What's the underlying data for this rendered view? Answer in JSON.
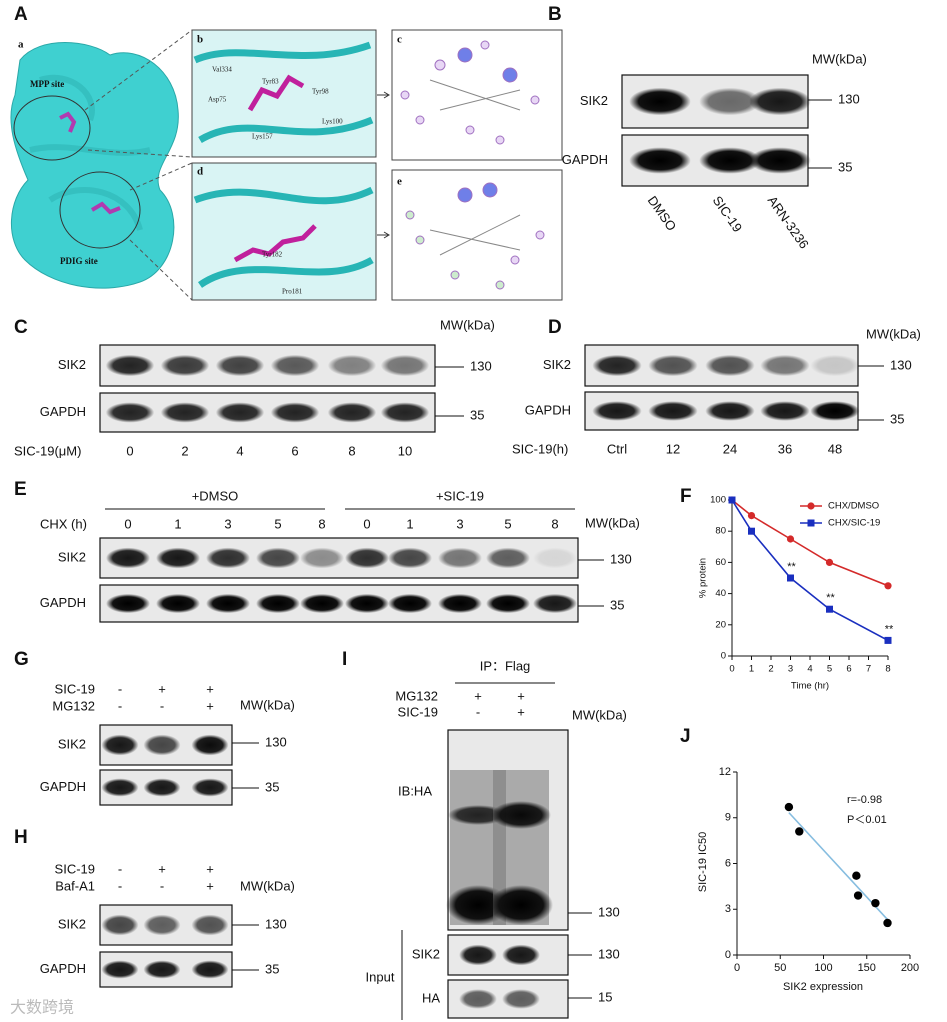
{
  "watermark": "大数跨境",
  "panels": {
    "A": {
      "label": "A",
      "subpanels": [
        "a",
        "b",
        "c",
        "d",
        "e"
      ],
      "sites": [
        "MPP site",
        "PDIG site"
      ],
      "residues_b": [
        "Val334",
        "Tyr83",
        "Asp75",
        "Tyr98",
        "Lys100",
        "Lys157"
      ],
      "residues_d": [
        "Tyr182",
        "Pro181"
      ]
    },
    "B": {
      "label": "B",
      "mw": "MW(kDa)",
      "rows": [
        {
          "name": "SIK2",
          "size": "130"
        },
        {
          "name": "GAPDH",
          "size": "35"
        }
      ],
      "lanes": [
        "DMSO",
        "SIC-19",
        "ARN-3236"
      ]
    },
    "C": {
      "label": "C",
      "mw": "MW(kDa)",
      "rows": [
        {
          "name": "SIK2",
          "size": "130"
        },
        {
          "name": "GAPDH",
          "size": "35"
        }
      ],
      "lane_title": "SIC-19(μM)",
      "lanes": [
        "0",
        "2",
        "4",
        "6",
        "8",
        "10"
      ]
    },
    "D": {
      "label": "D",
      "mw": "MW(kDa)",
      "rows": [
        {
          "name": "SIK2",
          "size": "130"
        },
        {
          "name": "GAPDH",
          "size": "35"
        }
      ],
      "lane_title": "SIC-19(h)",
      "lanes": [
        "Ctrl",
        "12",
        "24",
        "36",
        "48"
      ]
    },
    "E": {
      "label": "E",
      "mw": "MW(kDa)",
      "rows": [
        {
          "name": "SIK2",
          "size": "130"
        },
        {
          "name": "GAPDH",
          "size": "35"
        }
      ],
      "groups": [
        "+DMSO",
        "+SIC-19"
      ],
      "lane_title": "CHX (h)",
      "lanes": [
        "0",
        "1",
        "3",
        "5",
        "8",
        "0",
        "1",
        "3",
        "5",
        "8"
      ]
    },
    "G": {
      "label": "G",
      "mw": "MW(kDa)",
      "rows": [
        {
          "name": "SIK2",
          "size": "130"
        },
        {
          "name": "GAPDH",
          "size": "35"
        }
      ],
      "conditions": [
        {
          "name": "SIC-19",
          "signs": [
            "-",
            "+",
            "+"
          ]
        },
        {
          "name": "MG132",
          "signs": [
            "-",
            "-",
            "+"
          ]
        }
      ]
    },
    "H": {
      "label": "H",
      "mw": "MW(kDa)",
      "rows": [
        {
          "name": "SIK2",
          "size": "130"
        },
        {
          "name": "GAPDH",
          "size": "35"
        }
      ],
      "conditions": [
        {
          "name": "SIC-19",
          "signs": [
            "-",
            "+",
            "+"
          ]
        },
        {
          "name": "Baf-A1",
          "signs": [
            "-",
            "-",
            "+"
          ]
        }
      ]
    },
    "I": {
      "label": "I",
      "mw": "MW(kDa)",
      "groups": [
        "IP：Flag"
      ],
      "input": "Input",
      "rows": [
        {
          "name": "IB:HA",
          "size": "130"
        },
        {
          "name": "SIK2",
          "size": "130"
        },
        {
          "name": "HA",
          "size": "15"
        }
      ],
      "conditions": [
        {
          "name": "MG132",
          "signs": [
            "+",
            "+"
          ]
        },
        {
          "name": "SIC-19",
          "signs": [
            "-",
            "+"
          ]
        }
      ]
    }
  },
  "chart_data": [
    {
      "type": "line",
      "panel_label": "F",
      "x_label": "Time (hr)",
      "y_label": "% protein",
      "x": [
        0,
        1,
        3,
        5,
        8
      ],
      "xlim": [
        0,
        8
      ],
      "xticks": [
        0,
        1,
        2,
        3,
        4,
        5,
        6,
        7,
        8
      ],
      "ylim": [
        0,
        100
      ],
      "yticks": [
        0,
        20,
        40,
        60,
        80,
        100
      ],
      "legend": "top-right",
      "series": [
        {
          "name": "CHX/DMSO",
          "color": "#d42a2a",
          "marker": "circle",
          "values": [
            100,
            90,
            75,
            60,
            45
          ]
        },
        {
          "name": "CHX/SIC-19",
          "color": "#1a2fbf",
          "marker": "square",
          "values": [
            100,
            80,
            50,
            30,
            10
          ]
        }
      ],
      "annotations": [
        "**",
        "**",
        "**"
      ]
    },
    {
      "type": "scatter",
      "panel_label": "J",
      "x_label": "SIK2 expression",
      "y_label": "SIC-19 IC50",
      "x": [
        60,
        72,
        138,
        140,
        160,
        174
      ],
      "values": [
        9.7,
        8.1,
        5.2,
        3.9,
        3.4,
        2.1
      ],
      "color": "#000000",
      "xlim": [
        0,
        200
      ],
      "xticks": [
        0,
        50,
        100,
        150,
        200
      ],
      "ylim": [
        0,
        12
      ],
      "yticks": [
        0,
        3,
        6,
        9,
        12
      ],
      "trendline": true,
      "trendline_color": "#86bde0",
      "annotations": [
        "r=-0.98",
        "P＜0.01"
      ]
    }
  ]
}
